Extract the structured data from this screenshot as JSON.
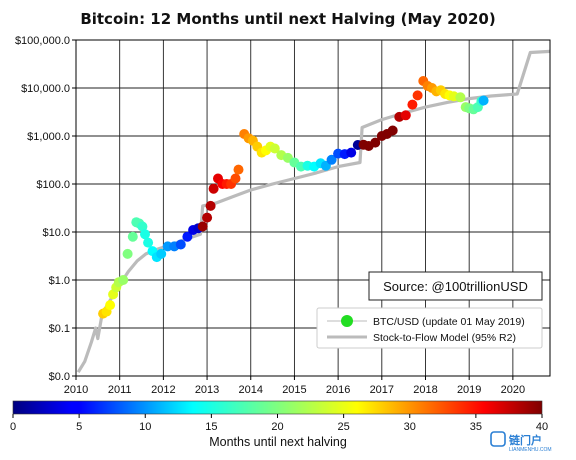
{
  "chart_data": {
    "type": "scatter",
    "title": "Bitcoin: 12 Months until next Halving (May 2020)",
    "x_axis": {
      "range": [
        2010.0,
        2020.85
      ],
      "ticks": [
        2010,
        2011,
        2012,
        2013,
        2014,
        2015,
        2016,
        2017,
        2018,
        2019,
        2020
      ],
      "tick_labels": [
        "2010",
        "2011",
        "2012",
        "2013",
        "2014",
        "2015",
        "2016",
        "2017",
        "2018",
        "2019",
        "2020"
      ]
    },
    "y_axis": {
      "scale": "log",
      "range": [
        0.01,
        100000
      ],
      "ticks": [
        0.01,
        0.1,
        1,
        10,
        100,
        1000,
        10000,
        100000
      ],
      "tick_labels": [
        "$0.0",
        "$0.1",
        "$1.0",
        "$10.0",
        "$100.0",
        "$1,000.0",
        "$10,000.0",
        "$100,000.0"
      ]
    },
    "grid": true,
    "source_label": "Source: @100trillionUSD",
    "legend": {
      "placement": "lower-right",
      "entries": [
        {
          "label": "BTC/USD (update 01 May 2019)",
          "marker": "dot",
          "color": "#22dd22"
        },
        {
          "label": "Stock-to-Flow Model (95% R2)",
          "marker": "line",
          "color": "#bbbbbb"
        }
      ]
    },
    "colorbar": {
      "label": "Months until next halving",
      "range": [
        0,
        40
      ],
      "ticks": [
        0,
        5,
        10,
        15,
        20,
        25,
        30,
        35,
        40
      ],
      "colormap": "jet"
    },
    "series": [
      {
        "name": "BTC/USD (update 01 May 2019)",
        "kind": "scatter",
        "color_by": "months_until_halving",
        "points": [
          {
            "x": 2010.62,
            "y": 0.2,
            "c": 27
          },
          {
            "x": 2010.7,
            "y": 0.22,
            "c": 26
          },
          {
            "x": 2010.78,
            "y": 0.3,
            "c": 25
          },
          {
            "x": 2010.85,
            "y": 0.5,
            "c": 24
          },
          {
            "x": 2010.92,
            "y": 0.7,
            "c": 23
          },
          {
            "x": 2010.98,
            "y": 0.9,
            "c": 22
          },
          {
            "x": 2011.08,
            "y": 1.0,
            "c": 21
          },
          {
            "x": 2011.18,
            "y": 3.5,
            "c": 20
          },
          {
            "x": 2011.3,
            "y": 8.0,
            "c": 19
          },
          {
            "x": 2011.38,
            "y": 16,
            "c": 18
          },
          {
            "x": 2011.45,
            "y": 15,
            "c": 18
          },
          {
            "x": 2011.52,
            "y": 13,
            "c": 17
          },
          {
            "x": 2011.58,
            "y": 9,
            "c": 16
          },
          {
            "x": 2011.65,
            "y": 6,
            "c": 16
          },
          {
            "x": 2011.75,
            "y": 4,
            "c": 15
          },
          {
            "x": 2011.85,
            "y": 3,
            "c": 14
          },
          {
            "x": 2011.95,
            "y": 3.5,
            "c": 13
          },
          {
            "x": 2012.1,
            "y": 5,
            "c": 11
          },
          {
            "x": 2012.25,
            "y": 5,
            "c": 10
          },
          {
            "x": 2012.4,
            "y": 5.5,
            "c": 8
          },
          {
            "x": 2012.55,
            "y": 8,
            "c": 6
          },
          {
            "x": 2012.68,
            "y": 11,
            "c": 4
          },
          {
            "x": 2012.8,
            "y": 12,
            "c": 3
          },
          {
            "x": 2012.9,
            "y": 13,
            "c": 39
          },
          {
            "x": 2013.0,
            "y": 20,
            "c": 38
          },
          {
            "x": 2013.08,
            "y": 35,
            "c": 38
          },
          {
            "x": 2013.15,
            "y": 80,
            "c": 37
          },
          {
            "x": 2013.25,
            "y": 130,
            "c": 36
          },
          {
            "x": 2013.35,
            "y": 100,
            "c": 35
          },
          {
            "x": 2013.45,
            "y": 100,
            "c": 34
          },
          {
            "x": 2013.55,
            "y": 100,
            "c": 33
          },
          {
            "x": 2013.65,
            "y": 130,
            "c": 32
          },
          {
            "x": 2013.72,
            "y": 200,
            "c": 31
          },
          {
            "x": 2013.85,
            "y": 1100,
            "c": 30
          },
          {
            "x": 2013.95,
            "y": 900,
            "c": 29
          },
          {
            "x": 2014.05,
            "y": 800,
            "c": 28
          },
          {
            "x": 2014.15,
            "y": 600,
            "c": 27
          },
          {
            "x": 2014.25,
            "y": 450,
            "c": 26
          },
          {
            "x": 2014.35,
            "y": 500,
            "c": 25
          },
          {
            "x": 2014.45,
            "y": 600,
            "c": 24
          },
          {
            "x": 2014.55,
            "y": 550,
            "c": 23
          },
          {
            "x": 2014.7,
            "y": 400,
            "c": 22
          },
          {
            "x": 2014.85,
            "y": 350,
            "c": 21
          },
          {
            "x": 2015.0,
            "y": 280,
            "c": 19
          },
          {
            "x": 2015.15,
            "y": 230,
            "c": 18
          },
          {
            "x": 2015.3,
            "y": 240,
            "c": 16
          },
          {
            "x": 2015.45,
            "y": 230,
            "c": 15
          },
          {
            "x": 2015.6,
            "y": 270,
            "c": 14
          },
          {
            "x": 2015.72,
            "y": 240,
            "c": 12
          },
          {
            "x": 2015.85,
            "y": 320,
            "c": 10
          },
          {
            "x": 2016.0,
            "y": 430,
            "c": 8
          },
          {
            "x": 2016.15,
            "y": 420,
            "c": 6
          },
          {
            "x": 2016.3,
            "y": 450,
            "c": 4
          },
          {
            "x": 2016.45,
            "y": 650,
            "c": 1
          },
          {
            "x": 2016.58,
            "y": 660,
            "c": 47
          },
          {
            "x": 2016.7,
            "y": 620,
            "c": 46
          },
          {
            "x": 2016.85,
            "y": 730,
            "c": 45
          },
          {
            "x": 2017.0,
            "y": 1000,
            "c": 43
          },
          {
            "x": 2017.12,
            "y": 1100,
            "c": 42
          },
          {
            "x": 2017.25,
            "y": 1300,
            "c": 40
          },
          {
            "x": 2017.4,
            "y": 2500,
            "c": 38
          },
          {
            "x": 2017.55,
            "y": 2700,
            "c": 36
          },
          {
            "x": 2017.7,
            "y": 4500,
            "c": 34
          },
          {
            "x": 2017.82,
            "y": 7000,
            "c": 33
          },
          {
            "x": 2017.95,
            "y": 14000,
            "c": 31
          },
          {
            "x": 2018.05,
            "y": 11000,
            "c": 30
          },
          {
            "x": 2018.15,
            "y": 10000,
            "c": 29
          },
          {
            "x": 2018.25,
            "y": 8500,
            "c": 28
          },
          {
            "x": 2018.35,
            "y": 9000,
            "c": 27
          },
          {
            "x": 2018.45,
            "y": 7500,
            "c": 26
          },
          {
            "x": 2018.55,
            "y": 7000,
            "c": 25
          },
          {
            "x": 2018.65,
            "y": 6700,
            "c": 24
          },
          {
            "x": 2018.8,
            "y": 6400,
            "c": 22
          },
          {
            "x": 2018.92,
            "y": 4000,
            "c": 21
          },
          {
            "x": 2019.0,
            "y": 3800,
            "c": 20
          },
          {
            "x": 2019.1,
            "y": 3600,
            "c": 19
          },
          {
            "x": 2019.2,
            "y": 4000,
            "c": 18
          },
          {
            "x": 2019.28,
            "y": 5300,
            "c": 17
          },
          {
            "x": 2019.33,
            "y": 5500,
            "c": 12
          }
        ]
      },
      {
        "name": "Stock-to-Flow Model (95% R2)",
        "kind": "line",
        "color": "#bbbbbb",
        "points": [
          {
            "x": 2010.05,
            "y": 0.012
          },
          {
            "x": 2010.2,
            "y": 0.02
          },
          {
            "x": 2010.35,
            "y": 0.05
          },
          {
            "x": 2010.45,
            "y": 0.1
          },
          {
            "x": 2010.5,
            "y": 0.06
          },
          {
            "x": 2010.6,
            "y": 0.2
          },
          {
            "x": 2010.8,
            "y": 0.4
          },
          {
            "x": 2011.0,
            "y": 0.8
          },
          {
            "x": 2011.2,
            "y": 1.5
          },
          {
            "x": 2011.4,
            "y": 2.5
          },
          {
            "x": 2011.6,
            "y": 3.5
          },
          {
            "x": 2011.9,
            "y": 4.5
          },
          {
            "x": 2012.2,
            "y": 5.5
          },
          {
            "x": 2012.5,
            "y": 7
          },
          {
            "x": 2012.85,
            "y": 9
          },
          {
            "x": 2012.9,
            "y": 35
          },
          {
            "x": 2013.2,
            "y": 40
          },
          {
            "x": 2013.6,
            "y": 55
          },
          {
            "x": 2014.0,
            "y": 75
          },
          {
            "x": 2014.5,
            "y": 100
          },
          {
            "x": 2015.0,
            "y": 130
          },
          {
            "x": 2015.5,
            "y": 170
          },
          {
            "x": 2016.0,
            "y": 230
          },
          {
            "x": 2016.5,
            "y": 280
          },
          {
            "x": 2016.55,
            "y": 1500
          },
          {
            "x": 2017.0,
            "y": 2200
          },
          {
            "x": 2017.5,
            "y": 3000
          },
          {
            "x": 2018.0,
            "y": 4000
          },
          {
            "x": 2018.5,
            "y": 5000
          },
          {
            "x": 2019.0,
            "y": 6000
          },
          {
            "x": 2019.5,
            "y": 6800
          },
          {
            "x": 2020.1,
            "y": 7500
          },
          {
            "x": 2020.4,
            "y": 55000
          },
          {
            "x": 2020.85,
            "y": 58000
          }
        ]
      }
    ]
  },
  "watermark": {
    "text": "链门户",
    "subtext": "LIANMENHU.COM"
  }
}
